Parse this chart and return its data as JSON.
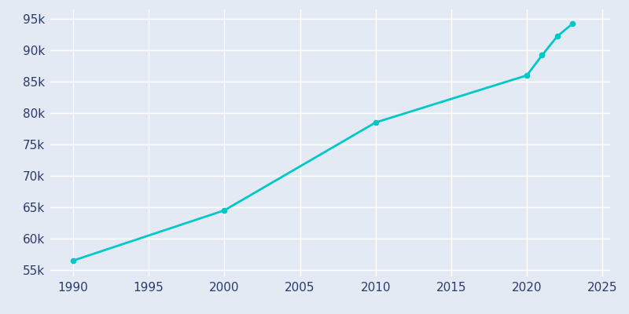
{
  "years": [
    1990,
    2000,
    2010,
    2020,
    2021,
    2022,
    2023
  ],
  "population": [
    56500,
    64500,
    78500,
    86000,
    89200,
    92200,
    94200
  ],
  "line_color": "#00C8C8",
  "bg_color": "#E3EAF4",
  "grid_color": "#FFFFFF",
  "text_color": "#2B3A6B",
  "ytick_labels": [
    "55k",
    "60k",
    "65k",
    "70k",
    "75k",
    "80k",
    "85k",
    "90k",
    "95k"
  ],
  "ytick_values": [
    55000,
    60000,
    65000,
    70000,
    75000,
    80000,
    85000,
    90000,
    95000
  ],
  "xtick_values": [
    1990,
    1995,
    2000,
    2005,
    2010,
    2015,
    2020,
    2025
  ],
  "xlim": [
    1988.5,
    2025.5
  ],
  "ylim": [
    54000,
    96500
  ],
  "linewidth": 2.0,
  "markersize": 4.5,
  "tick_fontsize": 11
}
